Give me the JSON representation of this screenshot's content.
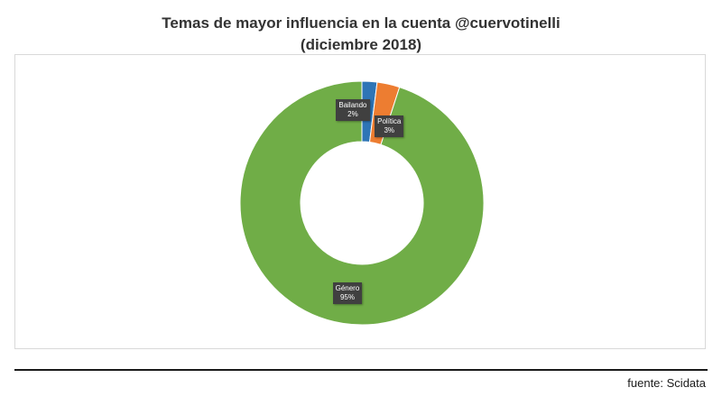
{
  "chart_data": {
    "type": "pie",
    "variant": "donut",
    "title_line1": "Temas de mayor influencia en la cuenta @cuervotinelli",
    "title_line2": "(diciembre 2018)",
    "slices": [
      {
        "label": "Bailando",
        "value": 2,
        "value_label": "2%",
        "color": "#2e75b6"
      },
      {
        "label": "Política",
        "value": 3,
        "value_label": "3%",
        "color": "#ed7d31"
      },
      {
        "label": "Género",
        "value": 95,
        "value_label": "95%",
        "color": "#70ad47"
      }
    ],
    "legend": "none",
    "data_labels": "on"
  },
  "footer": {
    "source": "fuente: Scidata"
  }
}
